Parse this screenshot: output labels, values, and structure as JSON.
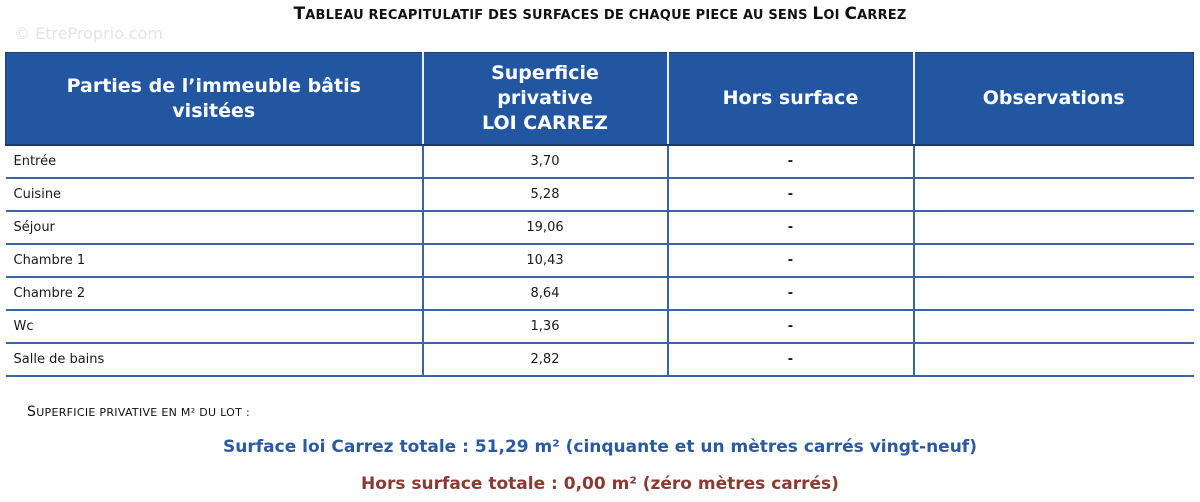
{
  "title": {
    "text": "Tableau recapitulatif des surfaces de chaque piece au sens Loi Carrez",
    "parts": [
      {
        "t": "T",
        "big": true
      },
      {
        "t": "ABLEAU RECAPITULATIF DES SURFACES DE CHAQUE PIECE AU SENS ",
        "big": false
      },
      {
        "t": "L",
        "big": true
      },
      {
        "t": "OI ",
        "big": false
      },
      {
        "t": "C",
        "big": true
      },
      {
        "t": "ARREZ",
        "big": false
      }
    ]
  },
  "watermark": "© EtreProprio.com",
  "table": {
    "headers": [
      "Parties de l’immeuble bâtis visitées",
      "Superficie privative LOI CARREZ",
      "Hors surface",
      "Observations"
    ],
    "header_lines": [
      [
        "Parties de l’immeuble bâtis",
        "visitées"
      ],
      [
        "Superficie",
        "privative",
        "LOI CARREZ"
      ],
      [
        "Hors surface"
      ],
      [
        "Observations"
      ]
    ],
    "rows": [
      {
        "piece": "Entrée",
        "superficie": "3,70",
        "hors_surface": "-",
        "observations": ""
      },
      {
        "piece": "Cuisine",
        "superficie": "5,28",
        "hors_surface": "-",
        "observations": ""
      },
      {
        "piece": "Séjour",
        "superficie": "19,06",
        "hors_surface": "-",
        "observations": ""
      },
      {
        "piece": "Chambre 1",
        "superficie": "10,43",
        "hors_surface": "-",
        "observations": ""
      },
      {
        "piece": "Chambre 2",
        "superficie": "8,64",
        "hors_surface": "-",
        "observations": ""
      },
      {
        "piece": "Wc",
        "superficie": "1,36",
        "hors_surface": "-",
        "observations": ""
      },
      {
        "piece": "Salle de bains",
        "superficie": "2,82",
        "hors_surface": "-",
        "observations": ""
      }
    ]
  },
  "summary": {
    "label_first": "S",
    "label_rest": "UPERFICIE PRIVATIVE EN M² DU LOT :",
    "carrez_total": "Surface loi Carrez totale : 51,29 m² (cinquante et un mètres carrés vingt-neuf)",
    "hors_total": "Hors surface totale : 0,00 m² (zéro mètres carrés)"
  },
  "colors": {
    "header_bg": "#2356a0",
    "grid_line": "#3a64a4",
    "carrez_text": "#2a5aa0",
    "hors_text": "#8a3a32"
  }
}
